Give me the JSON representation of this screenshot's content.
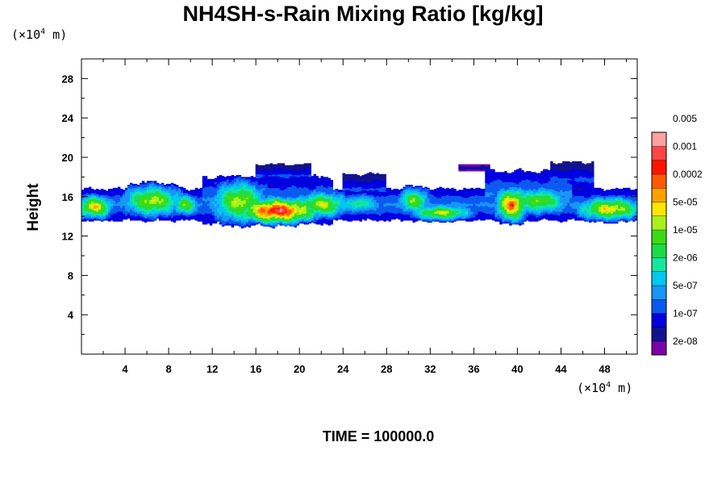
{
  "chart_data": {
    "type": "heatmap",
    "title": "NH4SH-s-Rain Mixing Ratio [kg/kg]",
    "ylabel": "Height",
    "x_unit": {
      "prefix": "(×10",
      "exp": "4",
      "suffix": " m)"
    },
    "y_unit": {
      "prefix": "(×10",
      "exp": "4",
      "suffix": " m)"
    },
    "xlim": [
      0,
      51
    ],
    "ylim": [
      0,
      30
    ],
    "xticks": [
      4,
      8,
      12,
      16,
      20,
      24,
      28,
      32,
      36,
      40,
      44,
      48
    ],
    "yticks": [
      4,
      8,
      12,
      16,
      20,
      24,
      28
    ],
    "time_label": "TIME = 100000.0",
    "colorbar": {
      "colors": [
        "#7a00a8",
        "#12128f",
        "#0000e0",
        "#0a5af0",
        "#1896f5",
        "#00c8f0",
        "#14e6a0",
        "#1edc46",
        "#3cdc14",
        "#aaf01e",
        "#ffe600",
        "#ffa000",
        "#ff5a00",
        "#ff1400",
        "#ff4646",
        "#ffa0a0"
      ],
      "labels": [
        "2e-08",
        "1e-07",
        "5e-07",
        "2e-06",
        "1e-05",
        "5e-05",
        "0.0002",
        "0.001",
        "0.005"
      ]
    },
    "field": {
      "description_levels": "band of mixing ratio at heights ~13-19 (x10^4 m) across the whole domain",
      "blobs": [
        {
          "cx": 1.2,
          "cy": 15.0,
          "rx": 1.4,
          "ry": 0.9,
          "peak": 9
        },
        {
          "cx": 6.5,
          "cy": 15.6,
          "rx": 2.2,
          "ry": 1.2,
          "peak": 8
        },
        {
          "cx": 9.5,
          "cy": 15.2,
          "rx": 1.0,
          "ry": 0.8,
          "peak": 7
        },
        {
          "cx": 14.5,
          "cy": 15.5,
          "rx": 2.0,
          "ry": 1.6,
          "peak": 8
        },
        {
          "cx": 18.0,
          "cy": 14.6,
          "rx": 3.0,
          "ry": 1.0,
          "peak": 13
        },
        {
          "cx": 22.0,
          "cy": 15.2,
          "rx": 2.0,
          "ry": 1.0,
          "peak": 8
        },
        {
          "cx": 25.5,
          "cy": 15.3,
          "rx": 1.6,
          "ry": 0.7,
          "peak": 5
        },
        {
          "cx": 30.5,
          "cy": 15.6,
          "rx": 1.2,
          "ry": 1.0,
          "peak": 7
        },
        {
          "cx": 33.0,
          "cy": 14.4,
          "rx": 2.2,
          "ry": 0.6,
          "peak": 8
        },
        {
          "cx": 39.5,
          "cy": 15.2,
          "rx": 1.2,
          "ry": 1.3,
          "peak": 11
        },
        {
          "cx": 42.0,
          "cy": 15.6,
          "rx": 2.2,
          "ry": 1.0,
          "peak": 7
        },
        {
          "cx": 48.5,
          "cy": 14.8,
          "rx": 2.4,
          "ry": 0.9,
          "peak": 9
        }
      ],
      "envelope": [
        {
          "x0": 0,
          "x1": 51,
          "ylo": 13.6,
          "yhi": 16.8,
          "level": 2
        },
        {
          "x0": 11,
          "x1": 23,
          "ylo": 13.3,
          "yhi": 18.0,
          "level": 2
        },
        {
          "x0": 16,
          "x1": 21,
          "ylo": 17.0,
          "yhi": 19.3,
          "level": 1
        },
        {
          "x0": 24,
          "x1": 28,
          "ylo": 15.2,
          "yhi": 18.3,
          "level": 1
        },
        {
          "x0": 37,
          "x1": 45,
          "ylo": 14.0,
          "yhi": 18.6,
          "level": 2
        },
        {
          "x0": 43,
          "x1": 47,
          "ylo": 16.0,
          "yhi": 19.5,
          "level": 1
        },
        {
          "x0": 34.5,
          "x1": 37.5,
          "ylo": 18.6,
          "yhi": 19.3,
          "level": 0
        }
      ]
    }
  }
}
